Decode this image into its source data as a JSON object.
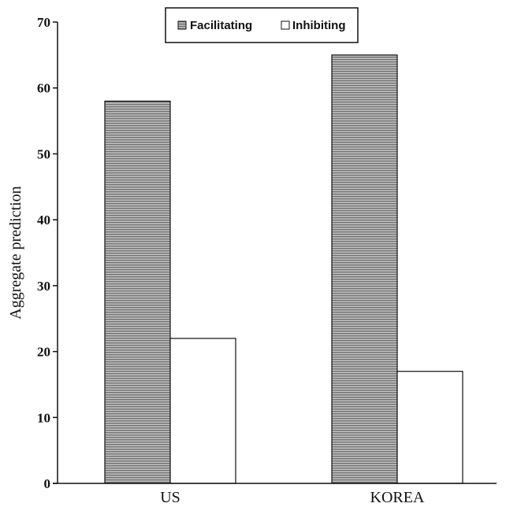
{
  "chart_data": {
    "type": "bar",
    "categories": [
      "US",
      "KOREA"
    ],
    "series": [
      {
        "name": "Facilitating",
        "values": [
          58,
          65
        ],
        "pattern": "hatched-horizontal",
        "color": "#9a9a9a"
      },
      {
        "name": "Inhibiting",
        "values": [
          22,
          17
        ],
        "pattern": "solid",
        "color": "#ffffff"
      }
    ],
    "title": "",
    "xlabel": "",
    "ylabel": "Aggregate prediction",
    "ylim": [
      0,
      70
    ],
    "yticks": [
      0,
      10,
      20,
      30,
      40,
      50,
      60,
      70
    ],
    "grid": false,
    "legend_position": "top-center"
  }
}
